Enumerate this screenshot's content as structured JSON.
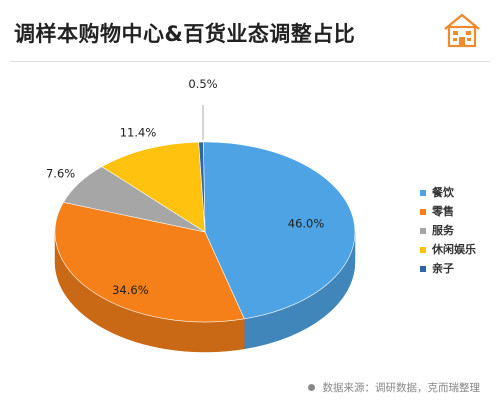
{
  "title": "调样本购物中心&百货业态调整占比",
  "source_text": "数据来源：调研数据，克而瑞整理",
  "logo_icon": "building-icon",
  "accent_color": "#f08a2c",
  "chart_data": {
    "type": "pie",
    "style": "3d",
    "title": "调样本购物中心&百货业态调整占比",
    "legend_position": "right",
    "series": [
      {
        "name": "餐饮",
        "value": 46.0,
        "label": "46.0%",
        "color": "#4ea3e4"
      },
      {
        "name": "零售",
        "value": 34.6,
        "label": "34.6%",
        "color": "#f57f19"
      },
      {
        "name": "服务",
        "value": 7.6,
        "label": "7.6%",
        "color": "#a6a6a6"
      },
      {
        "name": "休闲娱乐",
        "value": 11.4,
        "label": "11.4%",
        "color": "#ffc20e"
      },
      {
        "name": "亲子",
        "value": 0.5,
        "label": "0.5%",
        "color": "#2e64a8"
      }
    ]
  }
}
